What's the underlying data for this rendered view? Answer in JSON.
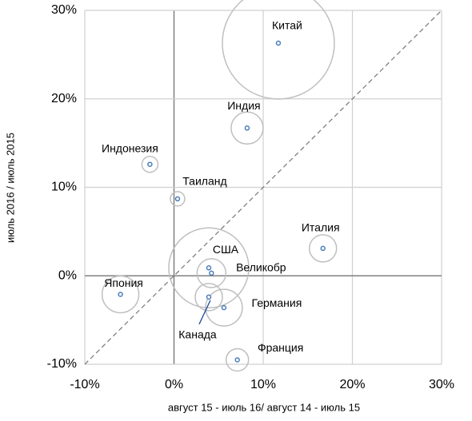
{
  "chart_data": {
    "type": "scatter",
    "labels": [
      "Китай",
      "Индия",
      "Индонезия",
      "Таиланд",
      "Италия",
      "США",
      "Великобр",
      "Япония",
      "Канада",
      "Германия",
      "Франция"
    ],
    "x": [
      11.7,
      8.2,
      -2.7,
      0.4,
      16.7,
      3.9,
      4.2,
      -6.0,
      3.9,
      5.6,
      7.1
    ],
    "values": [
      26.3,
      16.7,
      12.6,
      8.7,
      3.1,
      0.9,
      0.3,
      -2.1,
      -2.4,
      -3.6,
      -9.5
    ],
    "sizes": [
      70,
      20,
      10,
      9,
      17,
      50,
      18,
      23,
      17,
      23,
      14
    ],
    "color": "#4a7ebb",
    "bubble_color": "#bfbfbf",
    "xlim": [
      -10,
      30
    ],
    "ylim": [
      -10,
      30
    ],
    "xticks": [
      {
        "value": -10,
        "label": "-10%"
      },
      {
        "value": 0,
        "label": "0%"
      },
      {
        "value": 10,
        "label": "10%"
      },
      {
        "value": 20,
        "label": "20%"
      },
      {
        "value": 30,
        "label": "30%"
      }
    ],
    "yticks": [
      {
        "value": -10,
        "label": "-10%"
      },
      {
        "value": 0,
        "label": "0%"
      },
      {
        "value": 10,
        "label": "10%"
      },
      {
        "value": 20,
        "label": "20%"
      },
      {
        "value": 30,
        "label": "30%"
      }
    ],
    "xlabel": "август 15 - июль 16/ август 14 - июль 15",
    "ylabel": "июль 2016 / июль 2015",
    "grid": true,
    "diagonal": true
  }
}
